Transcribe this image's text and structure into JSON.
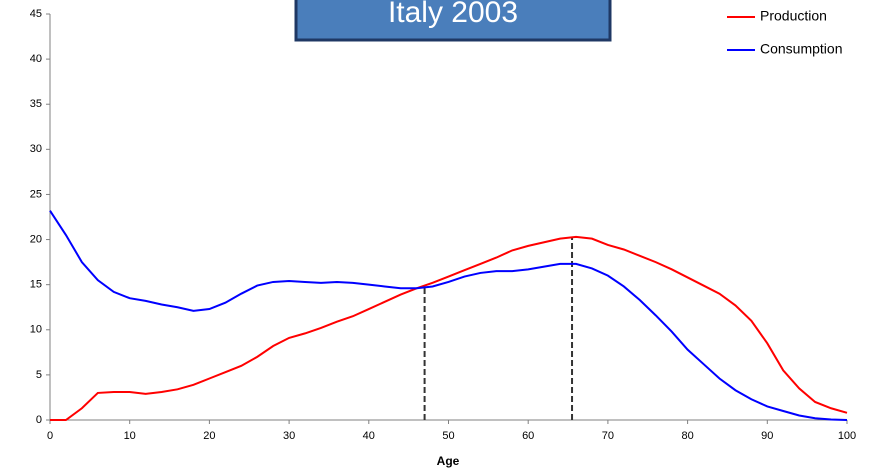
{
  "chart_data": {
    "type": "line",
    "title": "Italy 2003",
    "x_label": "Age",
    "x": [
      0,
      2,
      4,
      6,
      8,
      10,
      12,
      14,
      16,
      18,
      20,
      22,
      24,
      26,
      28,
      30,
      32,
      34,
      36,
      38,
      40,
      42,
      44,
      46,
      48,
      50,
      52,
      54,
      56,
      58,
      60,
      62,
      64,
      66,
      68,
      70,
      72,
      74,
      76,
      78,
      80,
      82,
      84,
      86,
      88,
      90,
      92,
      94,
      96,
      98,
      100
    ],
    "series": [
      {
        "name": "Production",
        "color": "#ff0000",
        "values": [
          0,
          0,
          1.3,
          3.0,
          3.1,
          3.1,
          2.9,
          3.1,
          3.4,
          3.9,
          4.6,
          5.3,
          6.0,
          7.0,
          8.2,
          9.1,
          9.6,
          10.2,
          10.9,
          11.5,
          12.3,
          13.1,
          13.9,
          14.6,
          15.2,
          15.9,
          16.6,
          17.3,
          18.0,
          18.8,
          19.3,
          19.7,
          20.1,
          20.3,
          20.1,
          19.4,
          18.9,
          18.2,
          17.5,
          16.7,
          15.8,
          14.9,
          14.0,
          12.7,
          11.0,
          8.5,
          5.5,
          3.5,
          2.0,
          1.3,
          0.8
        ]
      },
      {
        "name": "Consumption",
        "color": "#0000ff",
        "values": [
          23.2,
          20.5,
          17.5,
          15.5,
          14.2,
          13.5,
          13.2,
          12.8,
          12.5,
          12.1,
          12.3,
          13.0,
          14.0,
          14.9,
          15.3,
          15.4,
          15.3,
          15.2,
          15.3,
          15.2,
          15.0,
          14.8,
          14.6,
          14.6,
          14.8,
          15.3,
          15.9,
          16.3,
          16.5,
          16.5,
          16.7,
          17.0,
          17.3,
          17.3,
          16.8,
          16.0,
          14.8,
          13.3,
          11.6,
          9.8,
          7.8,
          6.2,
          4.6,
          3.3,
          2.3,
          1.5,
          1.0,
          0.5,
          0.2,
          0.05,
          0
        ]
      }
    ],
    "vlines": [
      {
        "x": 47,
        "y": 14.7
      },
      {
        "x": 65.5,
        "y": 20.3
      }
    ],
    "xlim": [
      0,
      100
    ],
    "xticks": [
      0,
      10,
      20,
      30,
      40,
      50,
      60,
      70,
      80,
      90,
      100
    ],
    "ylim": [
      0,
      45
    ],
    "yticks": [
      0,
      5,
      10,
      15,
      20,
      25,
      30,
      35,
      40,
      45
    ],
    "grid": false,
    "legend": "top-right"
  }
}
